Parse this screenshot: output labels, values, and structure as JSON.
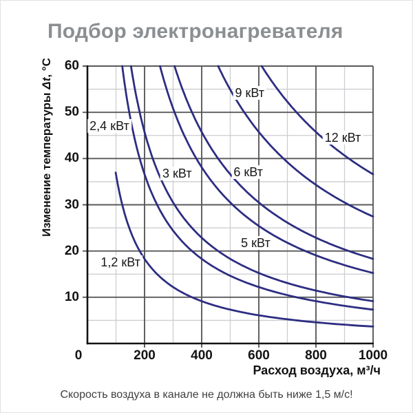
{
  "page": {
    "caption": "Скорость воздуха в канале не должна быть ниже 1,5 м/с!"
  },
  "chart_data": {
    "type": "line",
    "title": "Подбор электронагревателя",
    "xlabel": "Расход воздуха, м³/ч",
    "ylabel": "Изменение температуры Δt, °C",
    "ylabel_parts": {
      "prefix": "Изменение температуры ",
      "symbol": "Δt",
      "suffix": ", °C"
    },
    "xlim": [
      0,
      1000
    ],
    "ylim": [
      0,
      60
    ],
    "x_major_ticks": [
      0,
      200,
      400,
      600,
      800,
      1000
    ],
    "x_minor_ticks": [
      100,
      300,
      500,
      700,
      900
    ],
    "y_major_ticks": [
      10,
      20,
      30,
      40,
      50,
      60
    ],
    "y_minor_ticks": [
      5,
      15,
      25,
      35,
      45,
      55
    ],
    "grid": true,
    "model": "delta_t = k * P_kW / Q_m3h",
    "k": 3050,
    "series": [
      {
        "label": "1,2 кВт",
        "power_kw": 1.2,
        "q_start": 99,
        "q_end": 1000,
        "dt_start": 37.0,
        "dt_end": 3.7,
        "label_at": {
          "q": 116,
          "dt": 17.6
        }
      },
      {
        "label": "2,4 кВт",
        "power_kw": 2.4,
        "q_start": 122,
        "q_end": 1000,
        "dt_start": 60,
        "dt_end": 7.3,
        "label_at": {
          "q": 77,
          "dt": 47.1
        }
      },
      {
        "label": "3 кВт",
        "power_kw": 3,
        "q_start": 152.5,
        "q_end": 1000,
        "dt_start": 60,
        "dt_end": 9.2,
        "label_at": {
          "q": 314,
          "dt": 36.8
        }
      },
      {
        "label": "5 кВт",
        "power_kw": 5,
        "q_start": 254.2,
        "q_end": 1000,
        "dt_start": 60,
        "dt_end": 15.3,
        "label_at": {
          "q": 589,
          "dt": 21.7
        }
      },
      {
        "label": "6 кВт",
        "power_kw": 6,
        "q_start": 305,
        "q_end": 1000,
        "dt_start": 60,
        "dt_end": 18.3,
        "label_at": {
          "q": 563,
          "dt": 37.1
        }
      },
      {
        "label": "9 кВт",
        "power_kw": 9,
        "q_start": 457.5,
        "q_end": 1000,
        "dt_start": 60,
        "dt_end": 27.5,
        "label_at": {
          "q": 568,
          "dt": 54.2
        }
      },
      {
        "label": "12 кВт",
        "power_kw": 12,
        "q_start": 610,
        "q_end": 1000,
        "dt_start": 60,
        "dt_end": 36.6,
        "label_at": {
          "q": 894,
          "dt": 44.5
        }
      }
    ],
    "colors": {
      "curve": "#2d2d82",
      "grid_major": "#59595b",
      "grid_minor": "#cccdd1",
      "axis": "#121212",
      "title": "#8b8f92",
      "caption": "#3f3f3f",
      "tick_text": "#131313"
    }
  }
}
